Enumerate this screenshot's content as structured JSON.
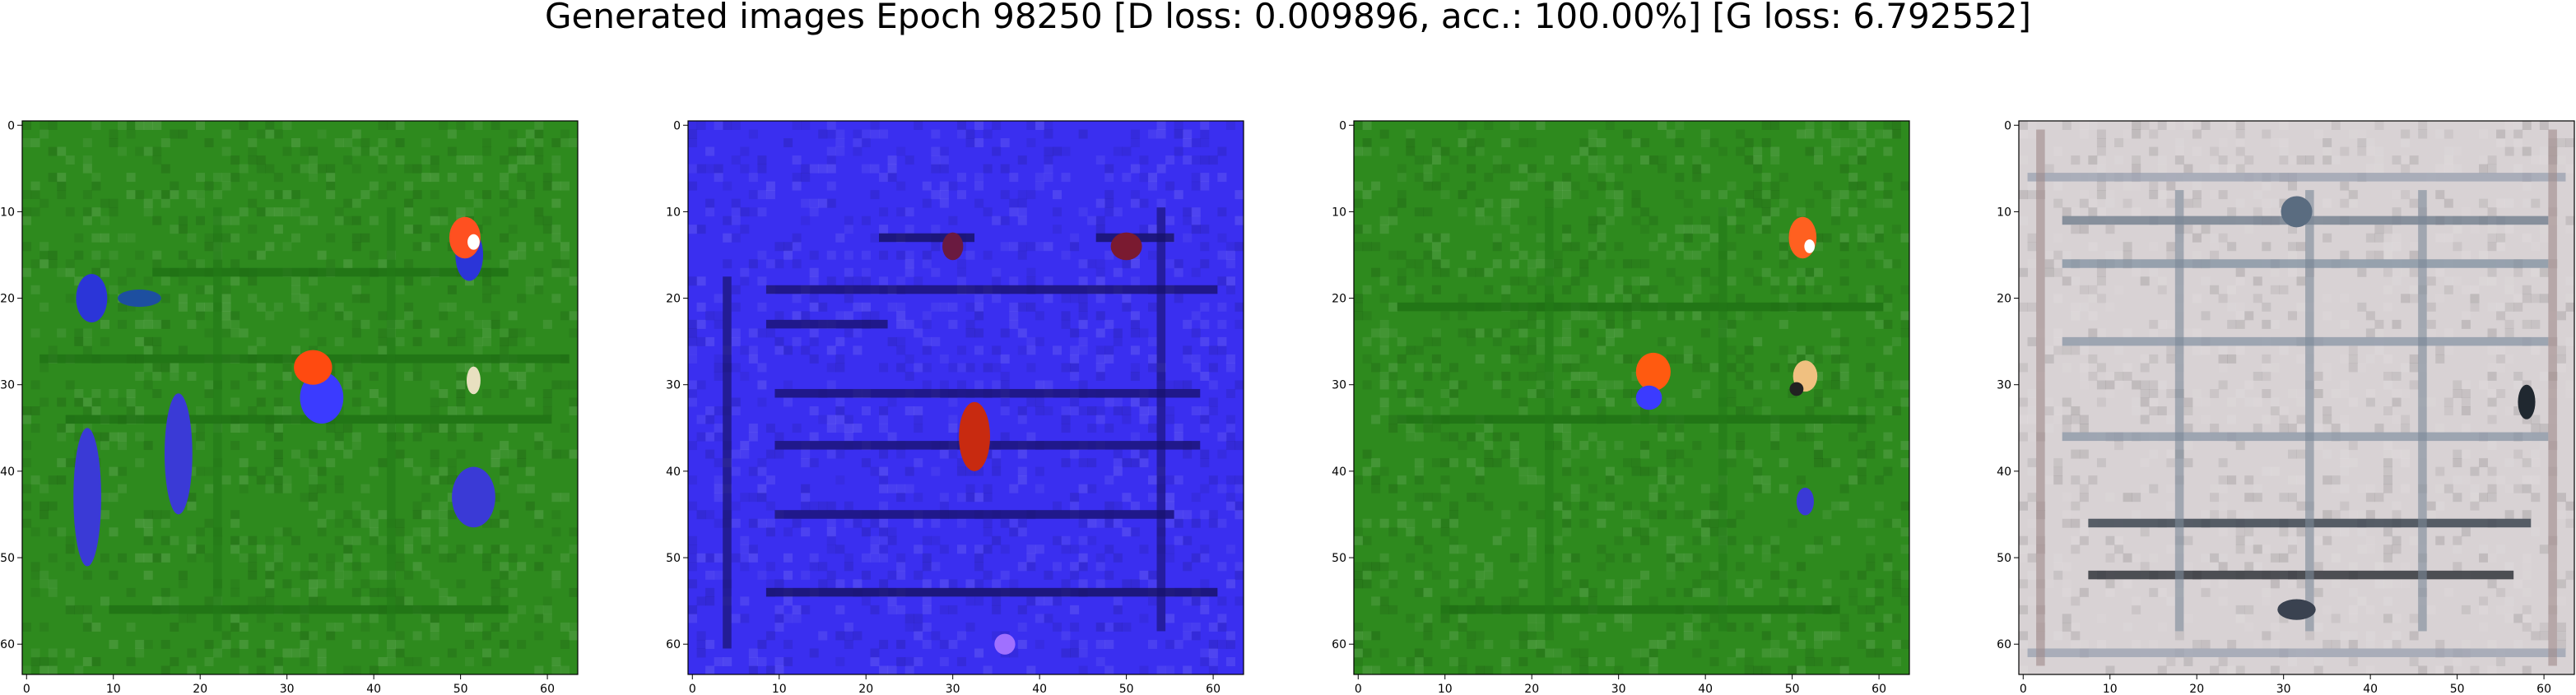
{
  "figure": {
    "title": "Generated images Epoch 98250 [D loss: 0.009896, acc.: 100.00%] [G loss: 6.792552]"
  },
  "chart_data": [
    {
      "type": "heatmap",
      "title": "",
      "xlim": [
        -0.5,
        63.5
      ],
      "ylim": [
        63.5,
        -0.5
      ],
      "xticks": [
        0,
        10,
        20,
        30,
        40,
        50,
        60
      ],
      "yticks": [
        0,
        10,
        20,
        30,
        40,
        50,
        60
      ],
      "grid": false,
      "base_color": "#2e8a1e",
      "patterns": [
        {
          "kind": "hline",
          "row": 17,
          "x0": 15,
          "x1": 55,
          "color": "#1f6f14"
        },
        {
          "kind": "hline",
          "row": 27,
          "x0": 2,
          "x1": 62,
          "color": "#1f6f14"
        },
        {
          "kind": "hline",
          "row": 34,
          "x0": 5,
          "x1": 60,
          "color": "#1f6f14"
        },
        {
          "kind": "hline",
          "row": 56,
          "x0": 10,
          "x1": 55,
          "color": "#1f6f14"
        },
        {
          "kind": "vline",
          "col": 22,
          "y0": 10,
          "y1": 58,
          "color": "#237a18"
        },
        {
          "kind": "vline",
          "col": 42,
          "y0": 10,
          "y1": 58,
          "color": "#237a18"
        }
      ],
      "blobs": [
        {
          "cx": 7.5,
          "cy": 20,
          "rx": 1.8,
          "ry": 2.8,
          "color": "#2b35d8"
        },
        {
          "cx": 13,
          "cy": 20,
          "rx": 2.5,
          "ry": 1,
          "color": "#1d4fa0"
        },
        {
          "cx": 7,
          "cy": 43,
          "rx": 1.6,
          "ry": 8,
          "color": "#3a3ad6"
        },
        {
          "cx": 17.5,
          "cy": 38,
          "rx": 1.6,
          "ry": 7,
          "color": "#3a3ad6"
        },
        {
          "cx": 34,
          "cy": 31.5,
          "rx": 2.5,
          "ry": 3,
          "color": "#3b3bff"
        },
        {
          "cx": 33,
          "cy": 28,
          "rx": 2.2,
          "ry": 2,
          "color": "#ff4a10"
        },
        {
          "cx": 51,
          "cy": 15,
          "rx": 1.6,
          "ry": 3,
          "color": "#2b35d8"
        },
        {
          "cx": 50.5,
          "cy": 13,
          "rx": 1.8,
          "ry": 2.4,
          "color": "#ff5020"
        },
        {
          "cx": 51.5,
          "cy": 13.5,
          "rx": 0.7,
          "ry": 0.9,
          "color": "#ffffff"
        },
        {
          "cx": 51.5,
          "cy": 43,
          "rx": 2.5,
          "ry": 3.5,
          "color": "#3a3ad6"
        },
        {
          "cx": 51.5,
          "cy": 29.5,
          "rx": 0.8,
          "ry": 1.6,
          "color": "#e8e0c0"
        }
      ]
    },
    {
      "type": "heatmap",
      "title": "",
      "xlim": [
        -0.5,
        63.5
      ],
      "ylim": [
        63.5,
        -0.5
      ],
      "xticks": [
        0,
        10,
        20,
        30,
        40,
        50,
        60
      ],
      "yticks": [
        0,
        10,
        20,
        30,
        40,
        50,
        60
      ],
      "grid": false,
      "base_color": "#3a2ff0",
      "patterns": [
        {
          "kind": "hline",
          "row": 13,
          "x0": 22,
          "x1": 32,
          "color": "#14105a"
        },
        {
          "kind": "hline",
          "row": 13,
          "x0": 47,
          "x1": 55,
          "color": "#14105a"
        },
        {
          "kind": "hline",
          "row": 19,
          "x0": 9,
          "x1": 60,
          "color": "#18126a"
        },
        {
          "kind": "hline",
          "row": 23,
          "x0": 9,
          "x1": 22,
          "color": "#18126a"
        },
        {
          "kind": "hline",
          "row": 31,
          "x0": 10,
          "x1": 58,
          "color": "#18126a"
        },
        {
          "kind": "hline",
          "row": 37,
          "x0": 10,
          "x1": 58,
          "color": "#18126a"
        },
        {
          "kind": "hline",
          "row": 45,
          "x0": 10,
          "x1": 55,
          "color": "#18126a"
        },
        {
          "kind": "hline",
          "row": 54,
          "x0": 9,
          "x1": 60,
          "color": "#14105a"
        },
        {
          "kind": "vline",
          "col": 4,
          "y0": 18,
          "y1": 60,
          "color": "#14105a"
        },
        {
          "kind": "vline",
          "col": 54,
          "y0": 10,
          "y1": 58,
          "color": "#18126a"
        }
      ],
      "blobs": [
        {
          "cx": 32.5,
          "cy": 36,
          "rx": 1.8,
          "ry": 4,
          "color": "#c82a10"
        },
        {
          "cx": 30,
          "cy": 14,
          "rx": 1.2,
          "ry": 1.6,
          "color": "#6a1a40"
        },
        {
          "cx": 50,
          "cy": 14,
          "rx": 1.8,
          "ry": 1.6,
          "color": "#7a1a30"
        },
        {
          "cx": 36,
          "cy": 60,
          "rx": 1.2,
          "ry": 1.2,
          "color": "#a070ff"
        }
      ]
    },
    {
      "type": "heatmap",
      "title": "",
      "xlim": [
        -0.5,
        63.5
      ],
      "ylim": [
        63.5,
        -0.5
      ],
      "xticks": [
        0,
        10,
        20,
        30,
        40,
        50,
        60
      ],
      "yticks": [
        0,
        10,
        20,
        30,
        40,
        50,
        60
      ],
      "grid": false,
      "base_color": "#2e8a1e",
      "patterns": [
        {
          "kind": "hline",
          "row": 21,
          "x0": 5,
          "x1": 60,
          "color": "#1f6f14"
        },
        {
          "kind": "hline",
          "row": 34,
          "x0": 5,
          "x1": 58,
          "color": "#1f6f14"
        },
        {
          "kind": "hline",
          "row": 56,
          "x0": 10,
          "x1": 55,
          "color": "#1f6f14"
        },
        {
          "kind": "vline",
          "col": 22,
          "y0": 10,
          "y1": 58,
          "color": "#237a18"
        },
        {
          "kind": "vline",
          "col": 42,
          "y0": 10,
          "y1": 58,
          "color": "#237a18"
        }
      ],
      "blobs": [
        {
          "cx": 34,
          "cy": 28.5,
          "rx": 2,
          "ry": 2.2,
          "color": "#ff5a10"
        },
        {
          "cx": 33.5,
          "cy": 31.5,
          "rx": 1.5,
          "ry": 1.4,
          "color": "#3b3bff"
        },
        {
          "cx": 51.2,
          "cy": 13,
          "rx": 1.6,
          "ry": 2.4,
          "color": "#ff6020"
        },
        {
          "cx": 52,
          "cy": 14,
          "rx": 0.6,
          "ry": 0.8,
          "color": "#ffffff"
        },
        {
          "cx": 51.5,
          "cy": 29,
          "rx": 1.4,
          "ry": 1.8,
          "color": "#f0c080"
        },
        {
          "cx": 50.5,
          "cy": 30.5,
          "rx": 0.8,
          "ry": 0.8,
          "color": "#222222"
        },
        {
          "cx": 51.5,
          "cy": 43.5,
          "rx": 1,
          "ry": 1.6,
          "color": "#3a3ad6"
        }
      ]
    },
    {
      "type": "heatmap",
      "title": "",
      "xlim": [
        -0.5,
        63.5
      ],
      "ylim": [
        63.5,
        -0.5
      ],
      "xticks": [
        0,
        10,
        20,
        30,
        40,
        50,
        60
      ],
      "yticks": [
        0,
        10,
        20,
        30,
        40,
        50,
        60
      ],
      "grid": false,
      "base_color": "#d8d2d4",
      "patterns": [
        {
          "kind": "hline",
          "row": 6,
          "x0": 1,
          "x1": 62,
          "color": "#9aa0b0"
        },
        {
          "kind": "hline",
          "row": 11,
          "x0": 5,
          "x1": 60,
          "color": "#6c7a8a"
        },
        {
          "kind": "hline",
          "row": 16,
          "x0": 5,
          "x1": 60,
          "color": "#8090a0"
        },
        {
          "kind": "hline",
          "row": 25,
          "x0": 5,
          "x1": 60,
          "color": "#8a95a5"
        },
        {
          "kind": "hline",
          "row": 36,
          "x0": 5,
          "x1": 60,
          "color": "#8a95a5"
        },
        {
          "kind": "hline",
          "row": 46,
          "x0": 8,
          "x1": 58,
          "color": "#2a3440"
        },
        {
          "kind": "hline",
          "row": 52,
          "x0": 8,
          "x1": 56,
          "color": "#1e2228"
        },
        {
          "kind": "hline",
          "row": 61,
          "x0": 1,
          "x1": 62,
          "color": "#9aa0b0"
        },
        {
          "kind": "vline",
          "col": 2,
          "y0": 1,
          "y1": 62,
          "color": "#a08a8a"
        },
        {
          "kind": "vline",
          "col": 61,
          "y0": 1,
          "y1": 62,
          "color": "#a08a8a"
        },
        {
          "kind": "vline",
          "col": 18,
          "y0": 8,
          "y1": 58,
          "color": "#7c8898"
        },
        {
          "kind": "vline",
          "col": 33,
          "y0": 8,
          "y1": 58,
          "color": "#7c8898"
        },
        {
          "kind": "vline",
          "col": 46,
          "y0": 8,
          "y1": 58,
          "color": "#7c8898"
        }
      ],
      "blobs": [
        {
          "cx": 31.5,
          "cy": 10,
          "rx": 1.8,
          "ry": 1.8,
          "color": "#5a6c80"
        },
        {
          "cx": 31.5,
          "cy": 56,
          "rx": 2.2,
          "ry": 1.2,
          "color": "#3a4250"
        },
        {
          "cx": 58,
          "cy": 32,
          "rx": 1,
          "ry": 2,
          "color": "#202830"
        }
      ]
    }
  ]
}
